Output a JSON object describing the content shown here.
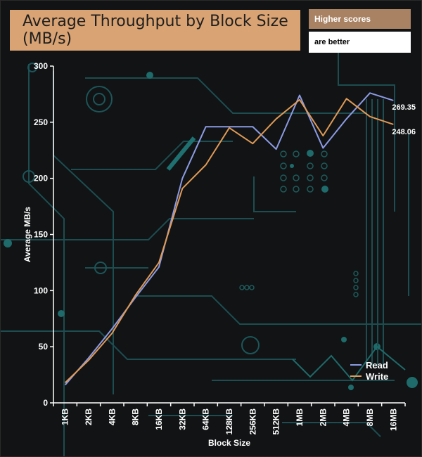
{
  "header": {
    "title": "Average Throughput by Block Size (MB/s)",
    "note_line1": "Higher scores",
    "note_line2": "are better"
  },
  "colors": {
    "read": "#8c9be3",
    "write": "#e09a55",
    "axis": "#ffffff",
    "circuit": "#1f5a5a"
  },
  "chart_data": {
    "type": "line",
    "title": "Average Throughput by Block Size (MB/s)",
    "xlabel": "Block Size",
    "ylabel": "Average MB/s",
    "ylim": [
      0,
      300
    ],
    "yticks": [
      0,
      50,
      100,
      150,
      200,
      250,
      300
    ],
    "grid": false,
    "legend": "bottom-right",
    "categories": [
      "1KB",
      "2KB",
      "4KB",
      "8KB",
      "16KB",
      "32KB",
      "64KB",
      "128KB",
      "256KB",
      "512KB",
      "1MB",
      "2MB",
      "4MB",
      "8MB",
      "16MB"
    ],
    "series": [
      {
        "name": "Read",
        "values": [
          16,
          40,
          66,
          94,
          121,
          200,
          246,
          246,
          246,
          226,
          274,
          227,
          253,
          276,
          269.35
        ],
        "end_label": "269.35"
      },
      {
        "name": "Write",
        "values": [
          18,
          38,
          62,
          96,
          125,
          191,
          212,
          245,
          231,
          253,
          270,
          238,
          271,
          255,
          248.06
        ],
        "end_label": "248.06"
      }
    ]
  }
}
